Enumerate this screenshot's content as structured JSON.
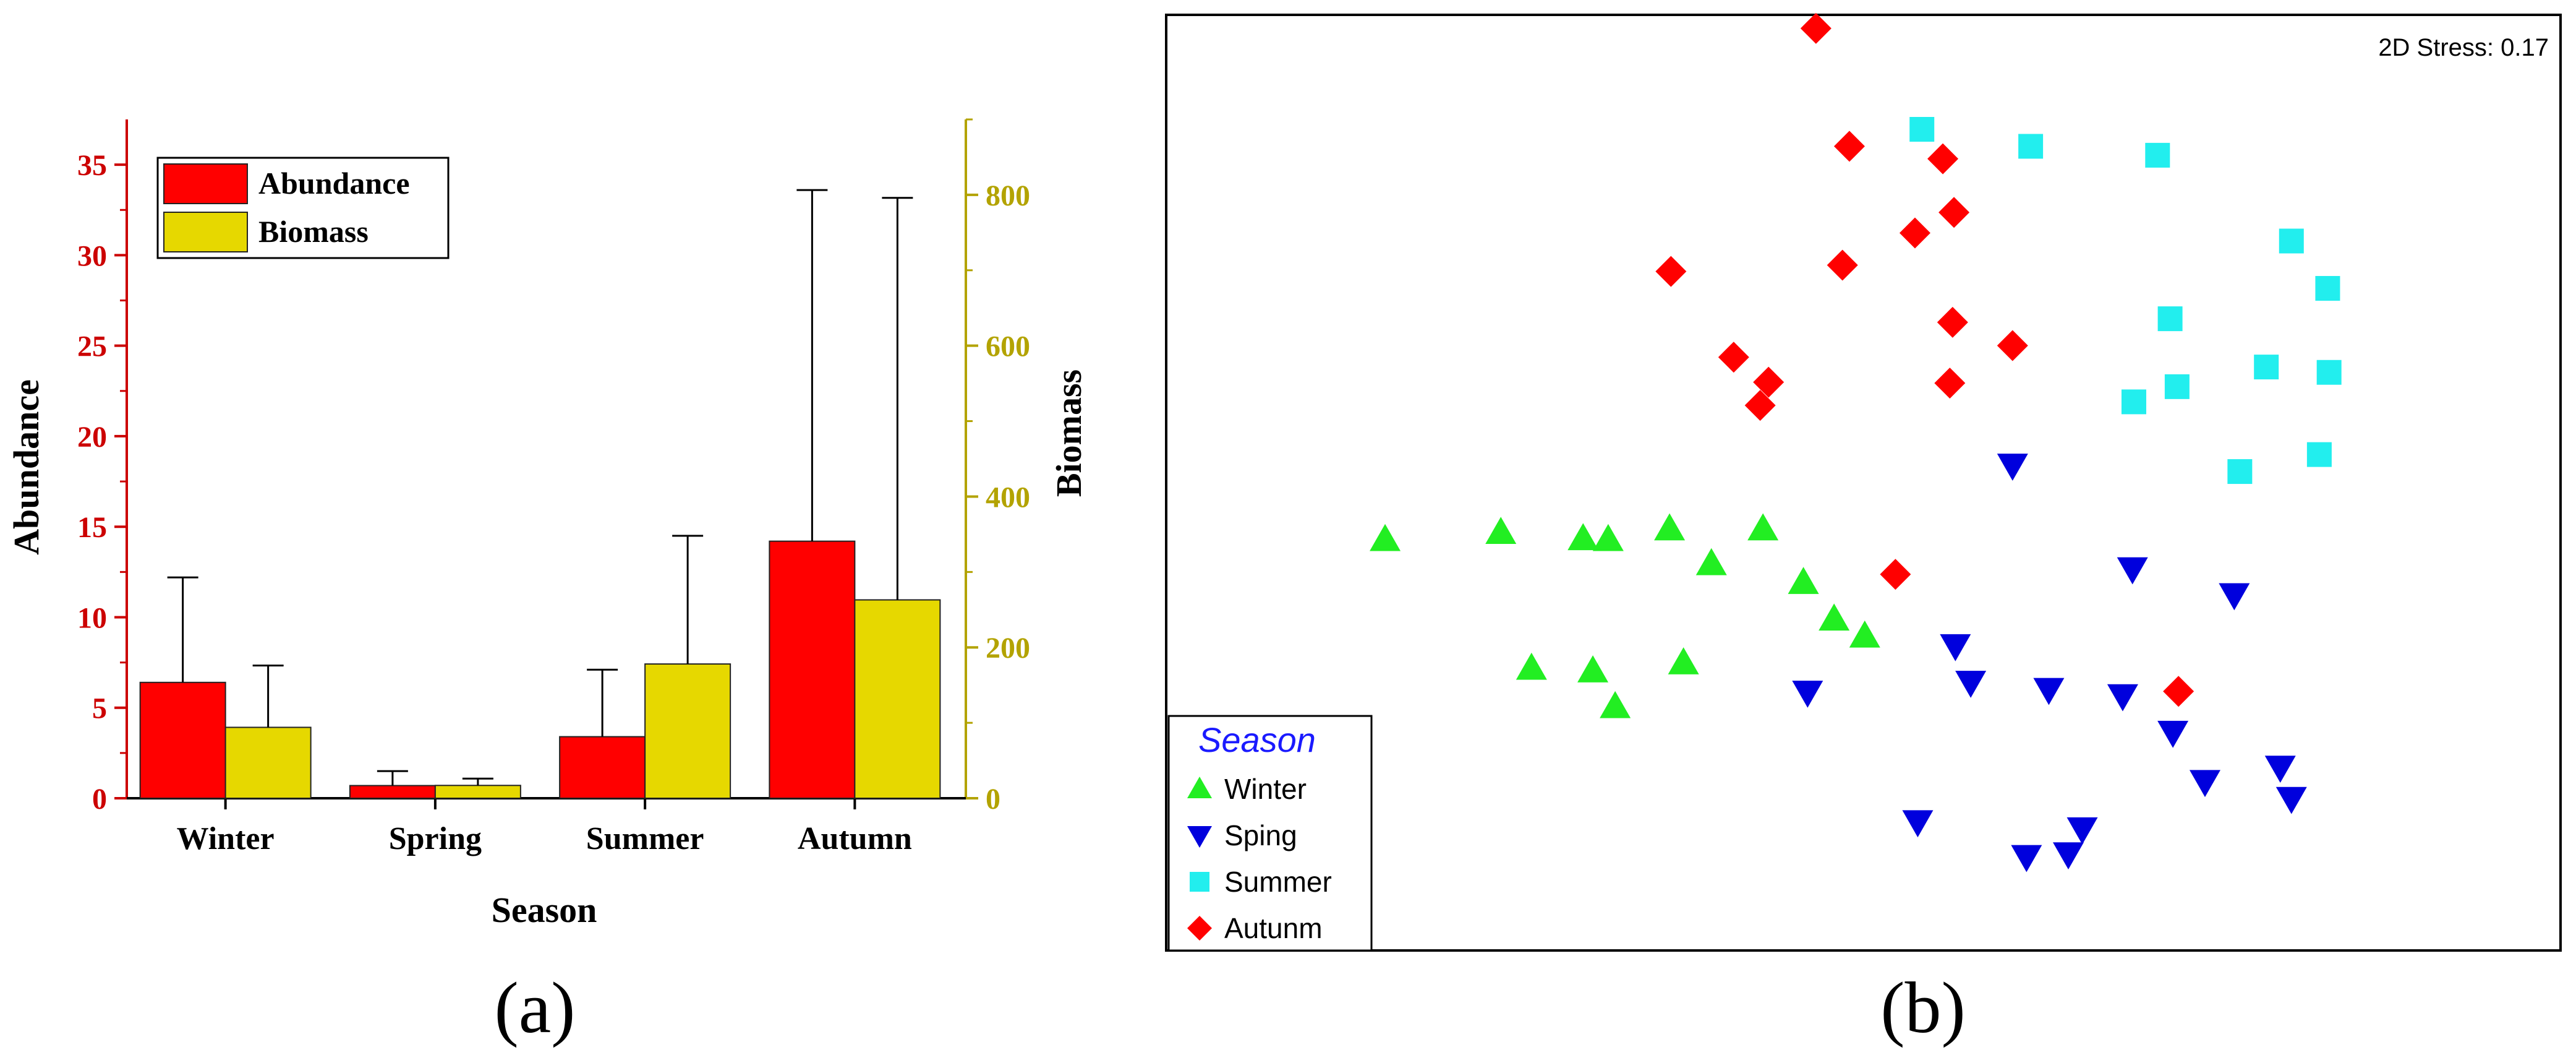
{
  "panel_labels": {
    "a": "(a)",
    "b": "(b)"
  },
  "colors": {
    "abundance": "#ff0000",
    "biomass": "#e6d800",
    "left_axis": "#cc0000",
    "right_axis": "#b3a300",
    "winter": "#22ee22",
    "spring": "#0000dd",
    "summer": "#22eeee",
    "autumn": "#ff0000",
    "legend_title": "#1a1aff"
  },
  "chart_data": [
    {
      "type": "bar",
      "title": "",
      "xlabel": "Season",
      "ylabel": "Abundance",
      "y2label": "Biomass",
      "categories": [
        "Winter",
        "Spring",
        "Summer",
        "Autumn"
      ],
      "ylim": [
        0,
        37.5
      ],
      "y2lim": [
        0,
        900
      ],
      "yticks": [
        0,
        5,
        10,
        15,
        20,
        25,
        30,
        35
      ],
      "y2ticks": [
        0,
        200,
        400,
        600,
        800
      ],
      "legend": {
        "position": "top-left",
        "entries": [
          "Abundance",
          "Biomass"
        ]
      },
      "series": [
        {
          "name": "Abundance",
          "axis": "left",
          "values": [
            6.4,
            0.7,
            3.4,
            14.2
          ],
          "errors": [
            5.8,
            0.8,
            3.7,
            19.4
          ]
        },
        {
          "name": "Biomass",
          "axis": "right",
          "values": [
            94,
            17,
            178,
            263
          ],
          "errors": [
            82,
            9,
            170,
            533
          ]
        }
      ]
    },
    {
      "type": "scatter",
      "title": "",
      "annotation": "2D Stress: 0.17",
      "grid": false,
      "axes_visible": false,
      "xlim": [
        0,
        100
      ],
      "ylim": [
        0,
        100
      ],
      "legend": {
        "title": "Season",
        "position": "bottom-left",
        "entries": [
          "Winter",
          "Sping",
          "Summer",
          "Autunm"
        ]
      },
      "series": [
        {
          "name": "Winter",
          "marker": "triangle-up",
          "points": [
            [
              15.7,
              46.0
            ],
            [
              24.0,
              46.8
            ],
            [
              29.9,
              46.1
            ],
            [
              31.7,
              46.0
            ],
            [
              36.1,
              47.2
            ],
            [
              39.1,
              43.3
            ],
            [
              42.8,
              47.2
            ],
            [
              45.7,
              41.2
            ],
            [
              47.9,
              37.1
            ],
            [
              50.1,
              35.2
            ],
            [
              26.2,
              31.6
            ],
            [
              30.6,
              31.3
            ],
            [
              37.1,
              32.2
            ],
            [
              32.2,
              27.3
            ]
          ]
        },
        {
          "name": "Sping",
          "marker": "triangle-down",
          "points": [
            [
              60.7,
              54.3
            ],
            [
              69.3,
              42.7
            ],
            [
              76.6,
              39.8
            ],
            [
              56.6,
              34.1
            ],
            [
              57.7,
              30.0
            ],
            [
              63.3,
              29.2
            ],
            [
              68.6,
              28.5
            ],
            [
              72.2,
              24.4
            ],
            [
              46.0,
              28.9
            ],
            [
              74.5,
              18.9
            ],
            [
              79.9,
              20.5
            ],
            [
              80.7,
              17.0
            ],
            [
              53.9,
              14.4
            ],
            [
              65.7,
              13.6
            ],
            [
              61.7,
              10.5
            ],
            [
              64.7,
              10.8
            ]
          ]
        },
        {
          "name": "Summer",
          "marker": "square",
          "points": [
            [
              54.2,
              91.9
            ],
            [
              62.0,
              90.0
            ],
            [
              71.1,
              89.0
            ],
            [
              80.7,
              79.4
            ],
            [
              83.3,
              74.1
            ],
            [
              72.0,
              70.7
            ],
            [
              78.9,
              65.3
            ],
            [
              83.4,
              64.7
            ],
            [
              72.5,
              63.1
            ],
            [
              69.4,
              61.4
            ],
            [
              77.0,
              53.6
            ],
            [
              82.7,
              55.5
            ]
          ]
        },
        {
          "name": "Autunm",
          "marker": "diamond",
          "points": [
            [
              46.6,
              103.2
            ],
            [
              49.0,
              90.0
            ],
            [
              55.7,
              88.6
            ],
            [
              56.5,
              82.6
            ],
            [
              53.7,
              80.3
            ],
            [
              48.5,
              76.7
            ],
            [
              36.2,
              76.0
            ],
            [
              56.4,
              70.3
            ],
            [
              60.7,
              67.7
            ],
            [
              40.7,
              66.4
            ],
            [
              43.2,
              63.6
            ],
            [
              42.6,
              61.0
            ],
            [
              56.2,
              63.5
            ],
            [
              52.3,
              42.1
            ],
            [
              72.6,
              29.0
            ]
          ]
        }
      ]
    }
  ]
}
